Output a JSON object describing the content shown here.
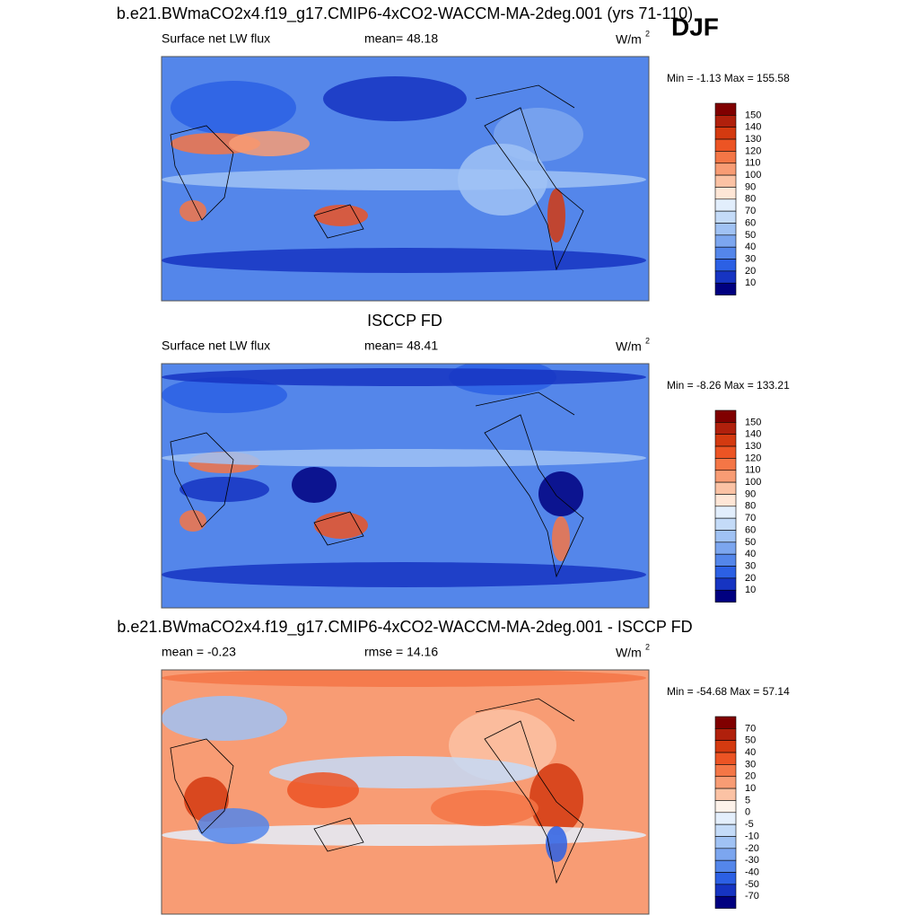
{
  "season": "DJF",
  "panels": [
    {
      "title": "b.e21.BWmaCO2x4.f19_g17.CMIP6-4xCO2-WACCM-MA-2deg.001 (yrs 71-110)",
      "left_label": "Surface net LW flux",
      "center_label": "mean=  48.18",
      "units": "W/m",
      "units_sup": "2",
      "minmax": "Min =  -1.13 Max = 155.58",
      "colorbar": {
        "levels": [
          150,
          140,
          130,
          120,
          110,
          100,
          90,
          80,
          70,
          60,
          50,
          40,
          30,
          20,
          10
        ],
        "colors": [
          "#800000",
          "#b0200c",
          "#d43a10",
          "#ec5424",
          "#f47646",
          "#f89c74",
          "#fbc2a4",
          "#fee6d6",
          "#e2eefc",
          "#c4dbf8",
          "#a0c2f4",
          "#7ca6ef",
          "#5486ea",
          "#2c60e4",
          "#1634c2",
          "#000080"
        ]
      }
    },
    {
      "title": "ISCCP FD",
      "left_label": "Surface net LW flux",
      "center_label": "mean=  48.41",
      "units": "W/m",
      "units_sup": "2",
      "minmax": "Min =  -8.26 Max = 133.21",
      "colorbar": {
        "levels": [
          150,
          140,
          130,
          120,
          110,
          100,
          90,
          80,
          70,
          60,
          50,
          40,
          30,
          20,
          10
        ],
        "colors": [
          "#800000",
          "#b0200c",
          "#d43a10",
          "#ec5424",
          "#f47646",
          "#f89c74",
          "#fbc2a4",
          "#fee6d6",
          "#e2eefc",
          "#c4dbf8",
          "#a0c2f4",
          "#7ca6ef",
          "#5486ea",
          "#2c60e4",
          "#1634c2",
          "#000080"
        ]
      }
    },
    {
      "title": "b.e21.BWmaCO2x4.f19_g17.CMIP6-4xCO2-WACCM-MA-2deg.001 - ISCCP FD",
      "left_label": "mean =  -0.23",
      "center_label": "rmse =  14.16",
      "units": "W/m",
      "units_sup": "2",
      "minmax": "Min = -54.68 Max =  57.14",
      "colorbar": {
        "levels": [
          70,
          50,
          40,
          30,
          20,
          10,
          5,
          0,
          -5,
          -10,
          -20,
          -30,
          -40,
          -50,
          -70
        ],
        "colors": [
          "#800000",
          "#b0200c",
          "#d43a10",
          "#ec5424",
          "#f47646",
          "#f89c74",
          "#fbc2a4",
          "#fdf2ea",
          "#e4effc",
          "#c4dbf8",
          "#a0c2f4",
          "#7ca6ef",
          "#5486ea",
          "#2c60e4",
          "#1634c2",
          "#000080"
        ]
      }
    }
  ]
}
